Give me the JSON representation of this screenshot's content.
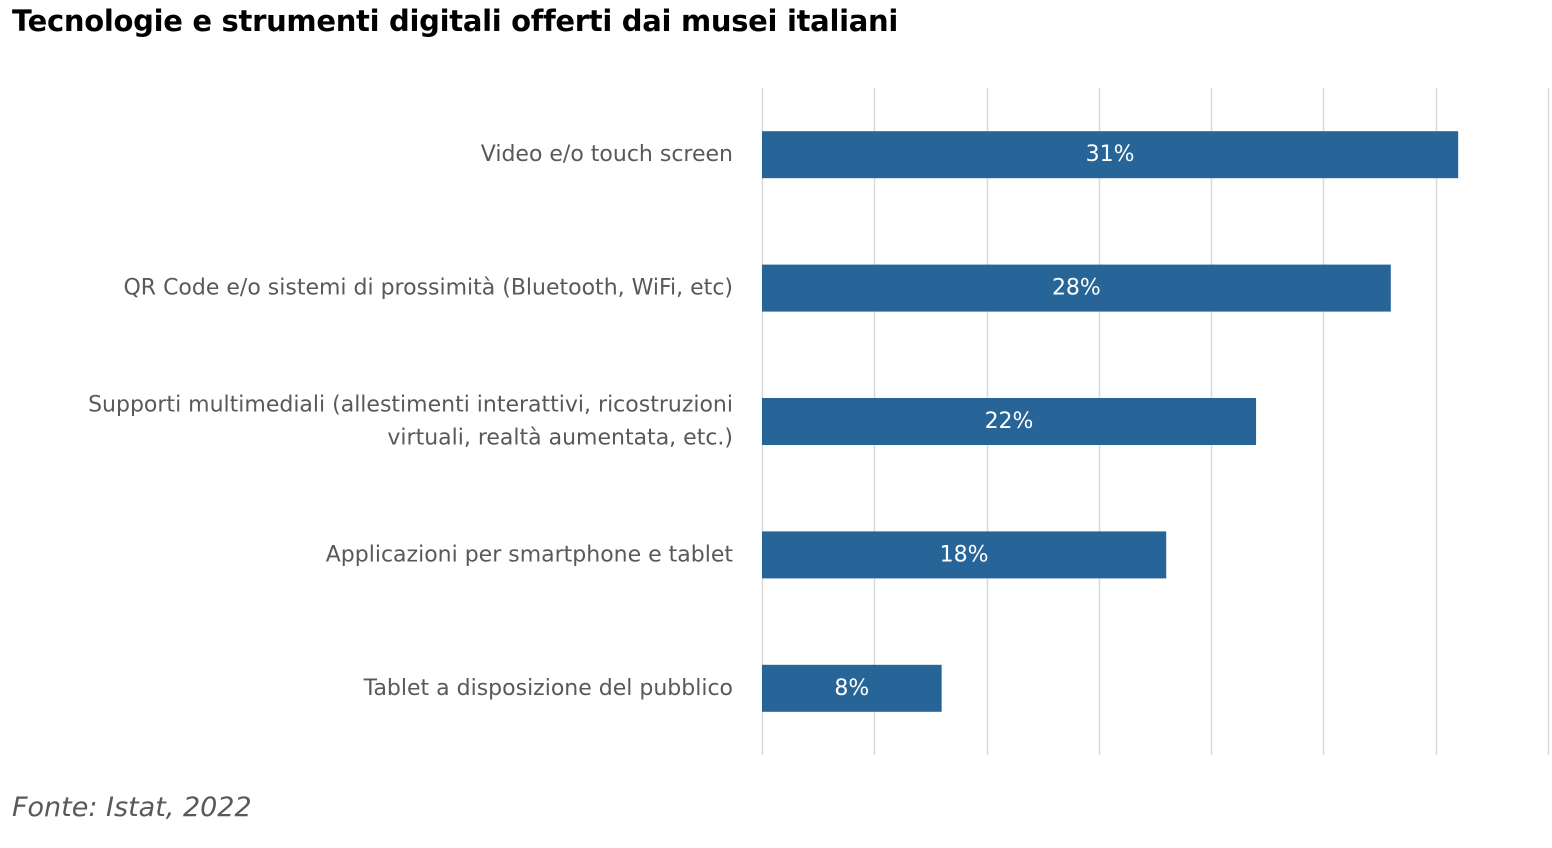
{
  "page": {
    "title": "Tecnologie e strumenti digitali offerti dai musei italiani",
    "source": "Fonte: Istat, 2022"
  },
  "colors": {
    "bar": "#276498",
    "grid": "#d9d9d9",
    "category_text": "#595959",
    "data_label_text": "#ffffff"
  },
  "chart_data": {
    "type": "bar",
    "orientation": "horizontal",
    "title": "Tecnologie e strumenti digitali offerti dai musei italiani",
    "categories": [
      [
        "Video e/o touch screen"
      ],
      [
        "QR Code e/o sistemi di prossimità (Bluetooth, WiFi, etc)"
      ],
      [
        "Supporti multimediali (allestimenti interattivi, ricostruzioni",
        "virtuali, realtà aumentata, etc.)"
      ],
      [
        "Applicazioni per smartphone e tablet"
      ],
      [
        "Tablet a disposizione del pubblico"
      ]
    ],
    "values": [
      31,
      28,
      22,
      18,
      8
    ],
    "data_labels": [
      "31%",
      "28%",
      "22%",
      "18%",
      "8%"
    ],
    "unit": "%",
    "xlim": [
      0,
      35
    ],
    "grid_step": 5,
    "grid": true,
    "x_tick_labels_visible": false,
    "legend": false
  }
}
